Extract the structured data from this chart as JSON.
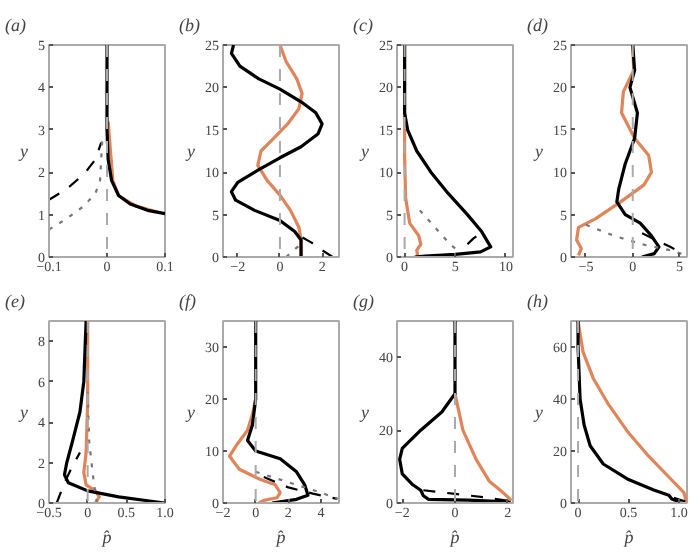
{
  "chart_data": [
    {
      "type": "line",
      "title": "(a)",
      "ylabel": "y",
      "xlim": [
        -0.1,
        0.1
      ],
      "xticks": [
        -0.1,
        0,
        0.1
      ],
      "ylim": [
        0,
        5
      ],
      "yticks": [
        0,
        1,
        2,
        3,
        4,
        5
      ],
      "grid": false,
      "ref_lines": [
        {
          "axis": "x",
          "value": 0,
          "color": "#aaaaaa",
          "line_style": "dashed"
        }
      ],
      "series": [
        {
          "color": "#e0855a",
          "line_style": "solid",
          "x": [
            0.09,
            0.05,
            0.02,
            0.01,
            0.006,
            0.002
          ],
          "values": [
            1.05,
            1.2,
            1.45,
            1.8,
            2.5,
            3.2
          ]
        },
        {
          "color": "#000000",
          "line_style": "solid",
          "x": [
            0.1,
            0.07,
            0.04,
            0.02,
            0.008,
            0.002,
            0,
            0
          ],
          "values": [
            1.02,
            1.1,
            1.25,
            1.45,
            1.8,
            2.3,
            3,
            5
          ]
        },
        {
          "color": "#000000",
          "line_style": "dashed",
          "x": [
            -0.1,
            -0.07,
            -0.04,
            -0.02,
            -0.01
          ],
          "values": [
            1.35,
            1.6,
            1.95,
            2.3,
            2.7
          ]
        },
        {
          "color": "#777777",
          "line_style": "dotted",
          "x": [
            -0.1,
            -0.07,
            -0.04,
            -0.02,
            -0.012,
            -0.01,
            -0.008
          ],
          "values": [
            0.65,
            0.9,
            1.2,
            1.5,
            1.8,
            2.3,
            2.8
          ]
        }
      ]
    },
    {
      "type": "line",
      "title": "(b)",
      "ylabel": "y",
      "xlim": [
        -2.7,
        2.8
      ],
      "xticks": [
        -2,
        0,
        2
      ],
      "ylim": [
        0,
        25
      ],
      "yticks": [
        0,
        5,
        10,
        15,
        20,
        25
      ],
      "grid": false,
      "ref_lines": [
        {
          "axis": "x",
          "value": 0,
          "color": "#aaaaaa",
          "line_style": "dashed"
        }
      ],
      "series": [
        {
          "color": "#e0855a",
          "line_style": "solid",
          "x": [
            1,
            1,
            0.9,
            0.5,
            0,
            -0.6,
            -1.05,
            -0.9,
            -0.3,
            0.4,
            0.9,
            1.05,
            0.8,
            0.3,
            0
          ],
          "values": [
            0,
            2,
            3.5,
            5.5,
            7.3,
            9,
            10.8,
            12.5,
            14,
            15.8,
            17.5,
            19.3,
            21,
            23,
            25
          ]
        },
        {
          "color": "#000000",
          "line_style": "solid",
          "x": [
            1,
            1,
            0.7,
            0,
            -1.2,
            -2.1,
            -2.3,
            -2,
            -1,
            0,
            1,
            1.8,
            2,
            1.7,
            1,
            0,
            -1,
            -1.9,
            -2.3,
            -2.2
          ],
          "values": [
            0,
            2,
            3,
            4.3,
            5.5,
            6.7,
            7.7,
            8.8,
            10.3,
            11.7,
            13,
            14.5,
            15.7,
            17,
            18.3,
            19.8,
            21,
            22.5,
            24,
            25
          ]
        },
        {
          "color": "#000000",
          "line_style": "dashed",
          "x": [
            2.5,
            2,
            1.5,
            1
          ],
          "values": [
            0,
            0.8,
            1.7,
            2.4
          ]
        },
        {
          "color": "#777777",
          "line_style": "dotted",
          "x": [
            0.3,
            0.6,
            1
          ],
          "values": [
            0,
            0.7,
            1.5
          ]
        }
      ]
    },
    {
      "type": "line",
      "title": "(c)",
      "ylabel": "y",
      "xlim": [
        -0.75,
        10.7
      ],
      "xticks": [
        0,
        5,
        10
      ],
      "ylim": [
        0,
        25
      ],
      "yticks": [
        0,
        5,
        10,
        15,
        20,
        25
      ],
      "grid": false,
      "ref_lines": [
        {
          "axis": "x",
          "value": 0,
          "color": "#aaaaaa",
          "line_style": "dashed"
        }
      ],
      "series": [
        {
          "color": "#e0855a",
          "line_style": "solid",
          "x": [
            0,
            0,
            0.1,
            0.5,
            1.4,
            1.6,
            1.2,
            1.3
          ],
          "values": [
            25,
            12,
            7,
            4,
            2.5,
            1.5,
            0.8,
            0
          ]
        },
        {
          "color": "#000000",
          "line_style": "solid",
          "x": [
            0,
            0,
            0.3,
            1.2,
            2.6,
            4.3,
            6.2,
            7.6,
            8.5,
            7.5,
            5,
            2,
            1
          ],
          "values": [
            25,
            17,
            15,
            12.5,
            10,
            7.5,
            5,
            3,
            1.2,
            0.6,
            0.3,
            0.1,
            0
          ]
        },
        {
          "color": "#000000",
          "line_style": "dashed",
          "x": [
            6.2,
            6.8,
            7.5
          ],
          "values": [
            1.5,
            2.2,
            2.8
          ]
        },
        {
          "color": "#777777",
          "line_style": "dotted",
          "x": [
            1.5,
            3,
            4.5,
            5.5
          ],
          "values": [
            5.5,
            3.5,
            1.5,
            0.5
          ]
        }
      ]
    },
    {
      "type": "line",
      "title": "(d)",
      "ylabel": "y",
      "xlim": [
        -6.6,
        5.8
      ],
      "xticks": [
        -5,
        0,
        5
      ],
      "ylim": [
        0,
        25
      ],
      "yticks": [
        0,
        5,
        10,
        15,
        20,
        25
      ],
      "grid": false,
      "ref_lines": [
        {
          "axis": "x",
          "value": 0,
          "color": "#aaaaaa",
          "line_style": "dashed"
        }
      ],
      "series": [
        {
          "color": "#e0855a",
          "line_style": "solid",
          "x": [
            0,
            0.1,
            -1,
            -1.2,
            0.2,
            1.7,
            2,
            1.2,
            -1.3,
            -4,
            -5.8,
            -6,
            -5.5,
            -5.8
          ],
          "values": [
            25,
            22,
            19.5,
            17,
            14,
            12,
            10,
            8.5,
            6.5,
            4.5,
            3.5,
            2,
            1,
            0.2
          ]
        },
        {
          "color": "#000000",
          "line_style": "solid",
          "x": [
            0,
            0.2,
            -0.3,
            0.5,
            0.2,
            -0.8,
            -1.5,
            -1.7,
            -0.8,
            0.8,
            2,
            2.8,
            2.3,
            1
          ],
          "values": [
            25,
            22,
            20,
            17,
            14,
            11,
            8,
            6.5,
            5,
            4,
            2.5,
            1.2,
            0.4,
            0
          ]
        },
        {
          "color": "#000000",
          "line_style": "dashed",
          "x": [
            1,
            2.5,
            4,
            5.5
          ],
          "values": [
            2.8,
            2,
            1.2,
            0.3
          ]
        },
        {
          "color": "#777777",
          "line_style": "dotted",
          "x": [
            -5,
            -2,
            1,
            4,
            5.7
          ],
          "values": [
            3.8,
            2.5,
            1.5,
            0.8,
            0.2
          ]
        }
      ]
    },
    {
      "type": "line",
      "title": "(e)",
      "xlabel": "p̂",
      "ylabel": "y",
      "xlim": [
        -0.5,
        1.0
      ],
      "xticks": [
        -0.5,
        0,
        0.5,
        {
          "value": 1.0,
          "label": "1.0"
        }
      ],
      "ylim": [
        0,
        9
      ],
      "yticks": [
        0,
        2,
        4,
        6,
        8
      ],
      "grid": false,
      "ref_lines": [
        {
          "axis": "x",
          "value": 0,
          "color": "#aaaaaa",
          "line_style": "dashed"
        }
      ],
      "series": [
        {
          "color": "#e0855a",
          "line_style": "solid",
          "x": [
            0,
            0,
            -0.02,
            -0.05,
            -0.02,
            0.1,
            0.15,
            0.1
          ],
          "values": [
            9,
            5,
            2.5,
            1.5,
            0.9,
            0.6,
            0.3,
            0
          ]
        },
        {
          "color": "#000000",
          "line_style": "solid",
          "x": [
            -0.02,
            -0.05,
            -0.1,
            -0.2,
            -0.27,
            -0.3,
            -0.25,
            0,
            0.4,
            0.8,
            1.0
          ],
          "values": [
            9,
            6,
            4.5,
            3,
            2,
            1.4,
            1,
            0.6,
            0.3,
            0.1,
            0
          ]
        },
        {
          "color": "#000000",
          "line_style": "dashed",
          "x": [
            -0.4,
            -0.35,
            -0.3,
            -0.2,
            -0.1
          ],
          "values": [
            0,
            0.5,
            1,
            1.8,
            2.5
          ]
        },
        {
          "color": "#777777",
          "line_style": "dotted",
          "x": [
            0.12,
            0.08,
            0.02,
            0
          ],
          "values": [
            0,
            1,
            3,
            5.5
          ]
        }
      ]
    },
    {
      "type": "line",
      "title": "(f)",
      "xlabel": "p̂",
      "ylabel": "y",
      "xlim": [
        -2,
        5.1
      ],
      "xticks": [
        -2,
        0,
        2,
        4
      ],
      "ylim": [
        0,
        35
      ],
      "yticks": [
        0,
        10,
        20,
        30
      ],
      "grid": false,
      "ref_lines": [
        {
          "axis": "x",
          "value": 0,
          "color": "#aaaaaa",
          "line_style": "dashed"
        }
      ],
      "series": [
        {
          "color": "#e0855a",
          "line_style": "solid",
          "x": [
            0,
            -0.2,
            -0.5,
            -1.2,
            -1.6,
            -1,
            0.3,
            1.2,
            1.5,
            1.3,
            0.5,
            0.2
          ],
          "values": [
            20,
            17,
            14,
            11,
            9,
            6.5,
            4.5,
            3.5,
            2,
            1,
            0.5,
            0
          ]
        },
        {
          "color": "#000000",
          "line_style": "solid",
          "x": [
            0,
            0,
            -0.2,
            -0.5,
            0,
            1.5,
            2.5,
            3,
            3.2,
            2.5,
            1
          ],
          "values": [
            35,
            20,
            15,
            12,
            10,
            8.5,
            6,
            3.5,
            1.5,
            0.7,
            0
          ]
        },
        {
          "color": "#000000",
          "line_style": "dashed",
          "x": [
            0.5,
            2,
            3.5,
            5
          ],
          "values": [
            5,
            3,
            1.8,
            0.8
          ]
        },
        {
          "color": "#777777",
          "line_style": "dotted",
          "x": [
            0,
            2,
            4,
            5
          ],
          "values": [
            6,
            4,
            2,
            0.8
          ]
        }
      ]
    },
    {
      "type": "line",
      "title": "(g)",
      "xlabel": "p̂",
      "ylabel": "y",
      "xlim": [
        -2.2,
        2.2
      ],
      "xticks": [
        -2,
        0,
        2
      ],
      "ylim": [
        0,
        50
      ],
      "yticks": [
        0,
        20,
        40
      ],
      "grid": false,
      "ref_lines": [
        {
          "axis": "x",
          "value": 0,
          "color": "#aaaaaa",
          "line_style": "dashed"
        }
      ],
      "series": [
        {
          "color": "#e0855a",
          "line_style": "solid",
          "x": [
            0,
            0.3,
            0.8,
            1.3,
            1.8,
            2.1,
            2
          ],
          "values": [
            30,
            20,
            12,
            6,
            3,
            1,
            0
          ]
        },
        {
          "color": "#000000",
          "line_style": "solid",
          "x": [
            0,
            0,
            -0.5,
            -1.3,
            -2,
            -2.1,
            -2,
            -1.6,
            -1.3,
            -1.2,
            -1,
            0.5,
            2,
            2.1
          ],
          "values": [
            50,
            30,
            25,
            20,
            15,
            12,
            8,
            5,
            3.5,
            2,
            1,
            0.8,
            0.3,
            0
          ]
        },
        {
          "color": "#000000",
          "line_style": "dashed",
          "x": [
            -1.2,
            0,
            1.2,
            2.1
          ],
          "values": [
            3.5,
            2.5,
            1.5,
            0.5
          ]
        }
      ]
    },
    {
      "type": "line",
      "title": "(h)",
      "xlabel": "p̂",
      "ylabel": "y",
      "xlim": [
        -0.07,
        1.08
      ],
      "xticks": [
        0,
        0.5,
        {
          "value": 1.0,
          "label": "1.0"
        }
      ],
      "ylim": [
        0,
        70
      ],
      "yticks": [
        0,
        20,
        40,
        60
      ],
      "grid": false,
      "ref_lines": [
        {
          "axis": "x",
          "value": 0,
          "color": "#aaaaaa",
          "line_style": "dashed"
        }
      ],
      "series": [
        {
          "color": "#e0855a",
          "line_style": "solid",
          "x": [
            0,
            0.05,
            0.15,
            0.3,
            0.5,
            0.7,
            0.9,
            1.05,
            1.07,
            1
          ],
          "values": [
            70,
            58,
            48,
            38,
            27,
            18,
            10,
            4,
            1,
            0
          ]
        },
        {
          "color": "#000000",
          "line_style": "solid",
          "x": [
            0,
            0,
            0.02,
            0.06,
            0.12,
            0.25,
            0.5,
            0.75,
            0.9,
            0.93,
            1,
            1
          ],
          "values": [
            70,
            60,
            40,
            30,
            22,
            15,
            9,
            5,
            3,
            1.5,
            0.5,
            0
          ]
        },
        {
          "color": "#000000",
          "line_style": "dashed",
          "x": [
            0.95,
            1.07
          ],
          "values": [
            2,
            0.5
          ]
        }
      ]
    }
  ]
}
